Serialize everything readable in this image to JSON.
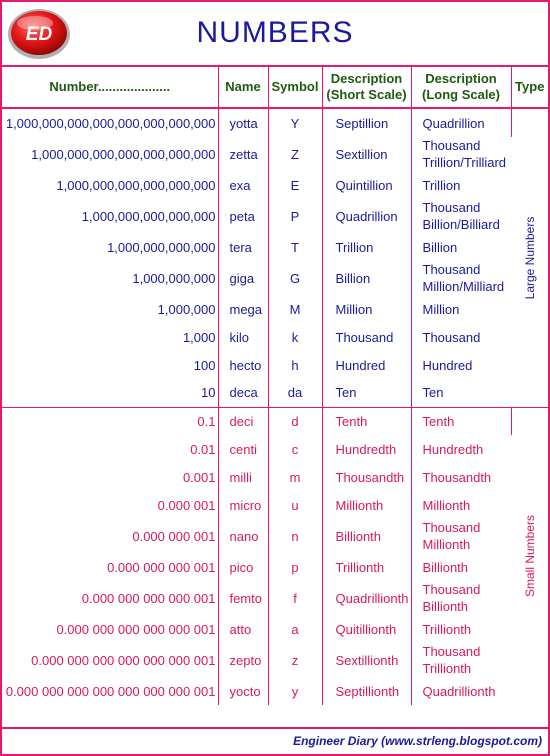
{
  "header": {
    "title": "NUMBERS",
    "logo_text": "ED",
    "colors": {
      "accent": "#e8196b",
      "title": "#1a1a9c",
      "logo_red": "#e01313"
    }
  },
  "columns": {
    "number": "Number....................",
    "name": "Name",
    "symbol": "Symbol",
    "short_l1": "Description",
    "short_l2": "(Short Scale)",
    "long_l1": "Description",
    "long_l2": "(Long Scale)",
    "type": "Type"
  },
  "types": {
    "large": "Large Numbers",
    "small": "Small Numbers"
  },
  "rows": [
    {
      "number": "1,000,000,000,000,000,000,000,000",
      "name": "yotta",
      "symbol": "Y",
      "short": "Septillion",
      "long1": "Quadrillion",
      "long2": ""
    },
    {
      "number": "1,000,000,000,000,000,000,000",
      "name": "zetta",
      "symbol": "Z",
      "short": "Sextillion",
      "long1": "Thousand",
      "long2": "Trillion/Trilliard"
    },
    {
      "number": "1,000,000,000,000,000,000",
      "name": "exa",
      "symbol": "E",
      "short": "Quintillion",
      "long1": "Trillion",
      "long2": ""
    },
    {
      "number": "1,000,000,000,000,000",
      "name": "peta",
      "symbol": "P",
      "short": "Quadrillion",
      "long1": "Thousand",
      "long2": "Billion/Billiard"
    },
    {
      "number": "1,000,000,000,000",
      "name": "tera",
      "symbol": "T",
      "short": "Trillion",
      "long1": "Billion",
      "long2": ""
    },
    {
      "number": "1,000,000,000",
      "name": "giga",
      "symbol": "G",
      "short": "Billion",
      "long1": "Thousand",
      "long2": "Million/Milliard"
    },
    {
      "number": "1,000,000",
      "name": "mega",
      "symbol": "M",
      "short": "Million",
      "long1": "Million",
      "long2": ""
    },
    {
      "number": "1,000",
      "name": "kilo",
      "symbol": "k",
      "short": "Thousand",
      "long1": "Thousand",
      "long2": ""
    },
    {
      "number": "100",
      "name": "hecto",
      "symbol": "h",
      "short": "Hundred",
      "long1": "Hundred",
      "long2": ""
    },
    {
      "number": "10",
      "name": "deca",
      "symbol": "da",
      "short": "Ten",
      "long1": "Ten",
      "long2": ""
    },
    {
      "number": "0.1",
      "name": "deci",
      "symbol": "d",
      "short": "Tenth",
      "long1": "Tenth",
      "long2": ""
    },
    {
      "number": "0.01",
      "name": "centi",
      "symbol": "c",
      "short": "Hundredth",
      "long1": "Hundredth",
      "long2": ""
    },
    {
      "number": "0.001",
      "name": "milli",
      "symbol": "m",
      "short": "Thousandth",
      "long1": "Thousandth",
      "long2": ""
    },
    {
      "number": "0.000 001",
      "name": "micro",
      "symbol": "u",
      "short": "Millionth",
      "long1": "Millionth",
      "long2": ""
    },
    {
      "number": "0.000 000 001",
      "name": "nano",
      "symbol": "n",
      "short": "Billionth",
      "long1": "Thousand",
      "long2": "Millionth"
    },
    {
      "number": "0.000 000 000 001",
      "name": "pico",
      "symbol": "p",
      "short": "Trillionth",
      "long1": "Billionth",
      "long2": ""
    },
    {
      "number": "0.000 000 000 000 001",
      "name": "femto",
      "symbol": "f",
      "short": "Quadrillionth",
      "long1": "Thousand",
      "long2": "Billionth"
    },
    {
      "number": "0.000 000 000 000 000 001",
      "name": "atto",
      "symbol": "a",
      "short": "Quitillionth",
      "long1": "Trillionth",
      "long2": ""
    },
    {
      "number": "0.000 000 000 000 000 000 001",
      "name": "zepto",
      "symbol": "z",
      "short": "Sextillionth",
      "long1": "Thousand",
      "long2": "Trillionth"
    },
    {
      "number": "0.000 000 000 000 000 000 000 001",
      "name": "yocto",
      "symbol": "y",
      "short": "Septillionth",
      "long1": "Quadrillionth",
      "long2": ""
    }
  ],
  "footer": {
    "text": "Engineer Diary (www.strleng.blogspot.com)"
  }
}
